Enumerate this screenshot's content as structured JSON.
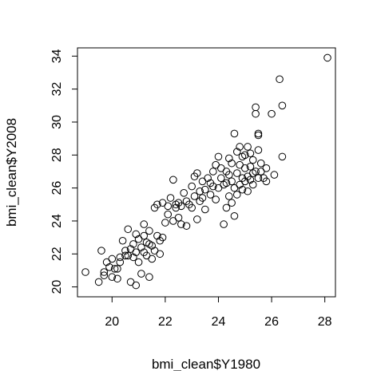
{
  "chart_data": {
    "type": "scatter",
    "title": "",
    "xlabel": "bmi_clean$Y1980",
    "ylabel": "bmi_clean$Y2008",
    "xlim": [
      18.7,
      28.4
    ],
    "ylim": [
      19.4,
      34.5
    ],
    "xticks": [
      20,
      22,
      24,
      26,
      28
    ],
    "yticks": [
      20,
      22,
      24,
      26,
      28,
      30,
      32,
      34
    ],
    "grid": false,
    "legend": "none",
    "marker": "open-circle",
    "series": [
      {
        "points": [
          [
            19.0,
            20.9
          ],
          [
            19.5,
            20.3
          ],
          [
            19.6,
            22.2
          ],
          [
            19.7,
            20.7
          ],
          [
            19.7,
            20.9
          ],
          [
            19.8,
            21.5
          ],
          [
            19.9,
            21.2
          ],
          [
            20.0,
            21.7
          ],
          [
            20.0,
            20.6
          ],
          [
            20.2,
            20.5
          ],
          [
            20.2,
            21.1
          ],
          [
            20.3,
            21.8
          ],
          [
            20.3,
            21.5
          ],
          [
            20.5,
            21.9
          ],
          [
            20.4,
            22.8
          ],
          [
            20.5,
            22.2
          ],
          [
            20.6,
            21.9
          ],
          [
            20.7,
            22.3
          ],
          [
            20.7,
            20.3
          ],
          [
            20.8,
            21.8
          ],
          [
            20.8,
            22.6
          ],
          [
            20.6,
            23.5
          ],
          [
            20.9,
            23.2
          ],
          [
            20.9,
            20.1
          ],
          [
            21.0,
            22.9
          ],
          [
            21.0,
            21.5
          ],
          [
            21.1,
            22.4
          ],
          [
            21.1,
            20.8
          ],
          [
            21.2,
            23.1
          ],
          [
            21.2,
            22.1
          ],
          [
            21.3,
            22.7
          ],
          [
            21.2,
            23.8
          ],
          [
            21.4,
            22.6
          ],
          [
            21.4,
            23.4
          ],
          [
            21.5,
            22.5
          ],
          [
            21.5,
            21.7
          ],
          [
            21.4,
            20.6
          ],
          [
            21.6,
            22.2
          ],
          [
            21.6,
            24.8
          ],
          [
            21.7,
            23.1
          ],
          [
            21.8,
            22.8
          ],
          [
            21.8,
            22.0
          ],
          [
            21.7,
            25.0
          ],
          [
            21.9,
            25.1
          ],
          [
            22.0,
            23.9
          ],
          [
            22.1,
            24.4
          ],
          [
            22.1,
            24.9
          ],
          [
            22.2,
            25.4
          ],
          [
            22.3,
            24.0
          ],
          [
            22.3,
            26.5
          ],
          [
            22.4,
            24.8
          ],
          [
            22.5,
            24.2
          ],
          [
            22.5,
            25.1
          ],
          [
            22.6,
            23.8
          ],
          [
            22.6,
            24.9
          ],
          [
            22.7,
            25.7
          ],
          [
            22.8,
            23.7
          ],
          [
            22.8,
            25.2
          ],
          [
            22.9,
            25.0
          ],
          [
            23.0,
            24.8
          ],
          [
            23.0,
            26.1
          ],
          [
            23.1,
            25.5
          ],
          [
            23.1,
            26.7
          ],
          [
            23.2,
            24.1
          ],
          [
            23.2,
            26.9
          ],
          [
            23.3,
            25.8
          ],
          [
            23.3,
            25.2
          ],
          [
            23.4,
            26.4
          ],
          [
            23.5,
            25.9
          ],
          [
            23.5,
            24.7
          ],
          [
            23.6,
            26.6
          ],
          [
            23.7,
            26.3
          ],
          [
            23.7,
            25.6
          ],
          [
            23.8,
            27.0
          ],
          [
            23.8,
            26.1
          ],
          [
            23.9,
            25.3
          ],
          [
            23.9,
            27.4
          ],
          [
            24.0,
            26.0
          ],
          [
            24.0,
            27.9
          ],
          [
            24.1,
            26.6
          ],
          [
            24.1,
            27.2
          ],
          [
            24.2,
            23.8
          ],
          [
            24.2,
            26.2
          ],
          [
            24.3,
            24.8
          ],
          [
            24.3,
            27.0
          ],
          [
            24.4,
            25.5
          ],
          [
            24.4,
            26.8
          ],
          [
            24.4,
            27.8
          ],
          [
            24.5,
            26.4
          ],
          [
            24.5,
            25.1
          ],
          [
            24.5,
            27.5
          ],
          [
            24.6,
            26.0
          ],
          [
            24.6,
            29.3
          ],
          [
            24.6,
            24.3
          ],
          [
            24.7,
            26.9
          ],
          [
            24.7,
            28.2
          ],
          [
            24.7,
            25.6
          ],
          [
            24.8,
            27.4
          ],
          [
            24.8,
            26.2
          ],
          [
            24.8,
            28.5
          ],
          [
            24.9,
            26.6
          ],
          [
            24.9,
            27.9
          ],
          [
            24.9,
            25.9
          ],
          [
            25.0,
            28.0
          ],
          [
            25.0,
            26.4
          ],
          [
            25.0,
            27.2
          ],
          [
            25.1,
            26.7
          ],
          [
            25.1,
            28.5
          ],
          [
            25.1,
            25.8
          ],
          [
            25.2,
            27.3
          ],
          [
            25.2,
            26.5
          ],
          [
            25.2,
            28.1
          ],
          [
            25.3,
            26.9
          ],
          [
            25.3,
            27.7
          ],
          [
            25.3,
            26.2
          ],
          [
            25.4,
            30.9
          ],
          [
            25.4,
            27.0
          ],
          [
            25.4,
            30.5
          ],
          [
            25.5,
            29.3
          ],
          [
            25.5,
            28.3
          ],
          [
            25.5,
            26.6
          ],
          [
            25.5,
            29.2
          ],
          [
            25.6,
            27.5
          ],
          [
            25.7,
            26.6
          ],
          [
            25.8,
            27.2
          ],
          [
            25.8,
            26.4
          ],
          [
            26.0,
            30.5
          ],
          [
            26.1,
            26.8
          ],
          [
            26.3,
            32.6
          ],
          [
            26.4,
            27.9
          ],
          [
            26.4,
            31.0
          ],
          [
            28.1,
            33.9
          ],
          [
            20.1,
            21.1
          ],
          [
            20.9,
            22.1
          ],
          [
            21.3,
            21.9
          ],
          [
            21.9,
            23.0
          ],
          [
            22.4,
            25.0
          ],
          [
            23.4,
            25.4
          ],
          [
            24.3,
            26.3
          ],
          [
            25.6,
            27.0
          ]
        ]
      }
    ]
  }
}
